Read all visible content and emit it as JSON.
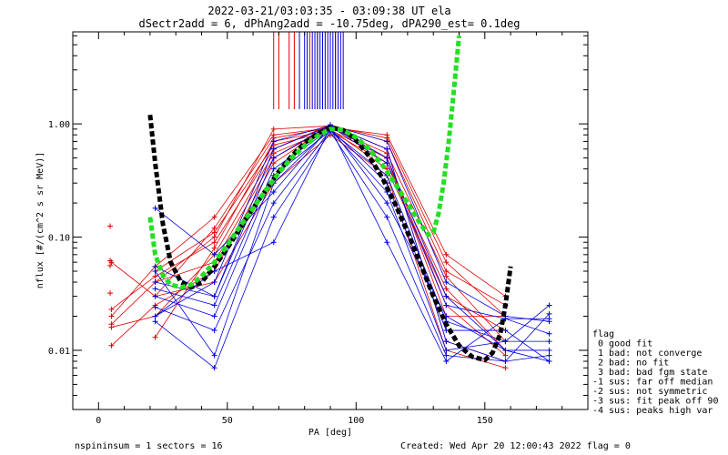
{
  "header": {
    "title_line1": "2022-03-21/03:03:35 - 03:09:38 UT ela",
    "title_line2": "dSectr2add = 6, dPhAng2add = -10.75deg, dPA290_est=   0.1deg"
  },
  "footer": {
    "left": "nspininsum =  1  sectors = 16",
    "right": "Created: Wed Apr 20 12:00:43 2022  flag = 0"
  },
  "legend": {
    "items": [
      "flag",
      " 0 good fit",
      " 1 bad: not converge",
      " 2 bad: no fit",
      " 3 bad: bad fgm state",
      "-1 sus: far off median",
      "-2 sus: not symmetric",
      "-3 sus: fit peak off 90",
      "-4 sus: peaks high var"
    ]
  },
  "colors": {
    "red": "#e00000",
    "blue": "#0000e0",
    "green": "#22e022",
    "black": "#000000"
  },
  "chart_data": {
    "type": "line",
    "xlabel": "PA [deg]",
    "ylabel": "nflux [#/(cm^2 s sr MeV)]",
    "xlim": [
      -10,
      190
    ],
    "ylim": [
      0.003,
      6.5
    ],
    "yscale": "log",
    "x_ticks": [
      0,
      50,
      100,
      150
    ],
    "x_tick_labels": [
      "0",
      "50",
      "100",
      "150"
    ],
    "y_ticks": [
      0.01,
      0.1,
      1.0
    ],
    "y_tick_labels": [
      "0.01",
      "0.10",
      "1.00"
    ],
    "sample_pa": [
      5,
      22,
      45,
      68,
      90,
      112,
      135,
      158,
      175
    ],
    "red_series": [
      [
        0.017,
        0.04,
        0.06,
        0.5,
        0.95,
        0.5,
        0.02,
        0.02,
        null
      ],
      [
        0.023,
        0.045,
        0.09,
        0.6,
        0.98,
        0.7,
        0.05,
        0.025,
        null
      ],
      [
        0.06,
        0.03,
        0.12,
        0.75,
        0.93,
        0.8,
        0.07,
        0.03,
        null
      ],
      [
        0.016,
        0.02,
        0.07,
        0.55,
        0.9,
        0.4,
        0.03,
        0.015,
        null
      ],
      [
        0.011,
        0.025,
        0.05,
        0.45,
        0.97,
        0.6,
        0.012,
        0.008,
        null
      ],
      [
        0.02,
        0.055,
        0.15,
        0.8,
        0.92,
        0.55,
        0.045,
        0.012,
        null
      ],
      [
        null,
        0.05,
        0.11,
        0.65,
        0.86,
        0.45,
        0.035,
        0.01,
        null
      ],
      [
        null,
        0.03,
        0.04,
        0.3,
        0.8,
        0.35,
        0.01,
        0.007,
        null
      ],
      [
        null,
        0.04,
        0.1,
        0.9,
        0.96,
        0.75,
        0.06,
        0.02,
        null
      ],
      [
        null,
        0.013,
        0.08,
        0.7,
        0.88,
        0.5,
        0.025,
        0.009,
        null
      ]
    ],
    "red_isolated_points": [
      [
        4.5,
        0.125
      ],
      [
        4.5,
        0.062
      ],
      [
        4.5,
        0.056
      ],
      [
        4.5,
        0.032
      ]
    ],
    "blue_series": [
      [
        null,
        0.18,
        0.07,
        0.25,
        0.95,
        0.45,
        0.025,
        0.019,
        0.019
      ],
      [
        null,
        0.055,
        0.03,
        0.5,
        0.98,
        0.6,
        0.012,
        0.008,
        0.021
      ],
      [
        null,
        0.02,
        0.05,
        0.09,
        0.93,
        0.2,
        0.02,
        0.01,
        0.008
      ],
      [
        null,
        0.05,
        0.009,
        0.3,
        0.92,
        0.09,
        0.008,
        0.019,
        0.014
      ],
      [
        null,
        0.035,
        0.025,
        0.4,
        0.9,
        0.3,
        0.015,
        0.015,
        0.008
      ],
      [
        null,
        0.024,
        0.015,
        0.2,
        0.88,
        0.25,
        0.01,
        0.012,
        0.025
      ],
      [
        null,
        0.04,
        0.03,
        0.6,
        0.96,
        0.5,
        0.03,
        0.01,
        0.01
      ],
      [
        null,
        0.018,
        0.007,
        0.15,
        0.85,
        0.15,
        0.009,
        0.008,
        0.009
      ],
      [
        null,
        0.02,
        0.04,
        0.7,
        0.97,
        0.7,
        0.04,
        0.02,
        0.018
      ],
      [
        null,
        0.03,
        0.02,
        0.35,
        0.87,
        0.35,
        0.018,
        0.012,
        0.012
      ]
    ],
    "fit_black": {
      "x": [
        20,
        22,
        25,
        28,
        32,
        36,
        40,
        45,
        50,
        55,
        60,
        65,
        70,
        75,
        80,
        85,
        90,
        95,
        100,
        105,
        110,
        115,
        120,
        125,
        130,
        135,
        140,
        145,
        150,
        153,
        156,
        158,
        160
      ],
      "y": [
        1.2,
        0.45,
        0.13,
        0.06,
        0.04,
        0.036,
        0.04,
        0.055,
        0.08,
        0.12,
        0.18,
        0.26,
        0.38,
        0.52,
        0.68,
        0.82,
        0.93,
        0.88,
        0.72,
        0.52,
        0.34,
        0.2,
        0.11,
        0.058,
        0.03,
        0.017,
        0.011,
        0.0088,
        0.0082,
        0.0095,
        0.014,
        0.025,
        0.055
      ]
    },
    "fit_green": {
      "x": [
        20,
        22,
        25,
        28,
        32,
        36,
        40,
        45,
        50,
        55,
        60,
        65,
        70,
        75,
        80,
        85,
        90,
        95,
        100,
        105,
        110,
        115,
        120,
        125,
        128,
        130,
        132,
        134,
        136,
        138,
        140
      ],
      "y": [
        0.15,
        0.07,
        0.046,
        0.038,
        0.036,
        0.038,
        0.045,
        0.06,
        0.085,
        0.125,
        0.18,
        0.26,
        0.37,
        0.5,
        0.64,
        0.78,
        0.9,
        0.88,
        0.76,
        0.6,
        0.44,
        0.3,
        0.2,
        0.13,
        0.105,
        0.11,
        0.16,
        0.3,
        0.7,
        2.0,
        6.0
      ]
    },
    "peak_lines": {
      "red_x": [
        68,
        70,
        74,
        76,
        82,
        85,
        87,
        90,
        92,
        93
      ],
      "blue_x": [
        78,
        80,
        81,
        83,
        84,
        85,
        86,
        87,
        88,
        89,
        90,
        91,
        92,
        93,
        94,
        95
      ]
    }
  }
}
